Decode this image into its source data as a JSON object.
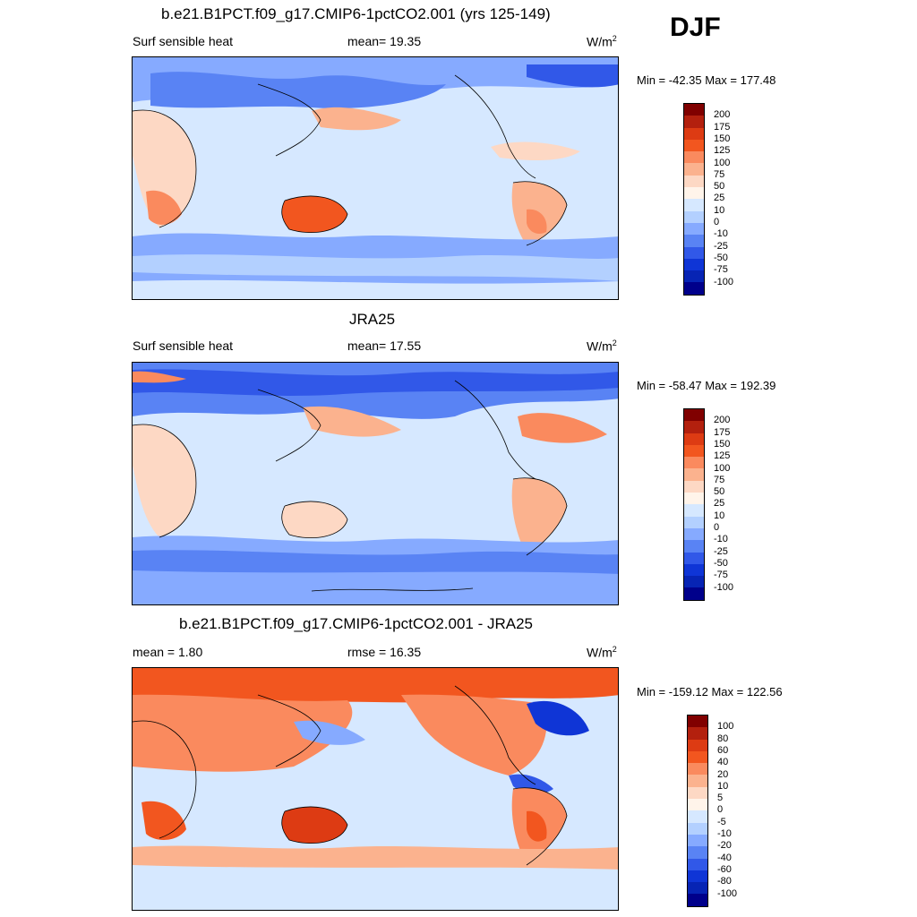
{
  "season": "DJF",
  "panels": [
    {
      "title": "b.e21.B1PCT.f09_g17.CMIP6-1pctCO2.001 (yrs 125-149)",
      "left_label": "Surf sensible heat",
      "mid_label": "mean=  19.35",
      "units": "W/m",
      "units_sup": "2",
      "minmax": "Min = -42.35 Max = 177.48",
      "colorbar": {
        "colors": [
          "#800000",
          "#b3200e",
          "#dd3b13",
          "#f2561f",
          "#fa8a5e",
          "#fbb28e",
          "#fdd8c4",
          "#fff4ea",
          "#d6e8ff",
          "#b3d0ff",
          "#86aaff",
          "#5983f4",
          "#3158e8",
          "#0f35d6",
          "#0724b4",
          "#00008b"
        ],
        "labels": [
          "200",
          "175",
          "150",
          "125",
          "100",
          "75",
          "50",
          "25",
          "10",
          "0",
          "-10",
          "-25",
          "-50",
          "-75",
          "-100"
        ]
      }
    },
    {
      "title": "JRA25",
      "left_label": "Surf sensible heat",
      "mid_label": "mean=  17.55",
      "units": "W/m",
      "units_sup": "2",
      "minmax": "Min = -58.47 Max = 192.39",
      "colorbar": {
        "colors": [
          "#800000",
          "#b3200e",
          "#dd3b13",
          "#f2561f",
          "#fa8a5e",
          "#fbb28e",
          "#fdd8c4",
          "#fff4ea",
          "#d6e8ff",
          "#b3d0ff",
          "#86aaff",
          "#5983f4",
          "#3158e8",
          "#0f35d6",
          "#0724b4",
          "#00008b"
        ],
        "labels": [
          "200",
          "175",
          "150",
          "125",
          "100",
          "75",
          "50",
          "25",
          "10",
          "0",
          "-10",
          "-25",
          "-50",
          "-75",
          "-100"
        ]
      }
    },
    {
      "title": "b.e21.B1PCT.f09_g17.CMIP6-1pctCO2.001 - JRA25",
      "left_label": "mean =   1.80",
      "mid_label": "rmse =  16.35",
      "units": "W/m",
      "units_sup": "2",
      "minmax": "Min = -159.12 Max = 122.56",
      "colorbar": {
        "colors": [
          "#800000",
          "#b3200e",
          "#dd3b13",
          "#f2561f",
          "#fa8a5e",
          "#fbb28e",
          "#fdd8c4",
          "#fff4ea",
          "#d6e8ff",
          "#b3d0ff",
          "#86aaff",
          "#5983f4",
          "#3158e8",
          "#0f35d6",
          "#0724b4",
          "#00008b"
        ],
        "labels": [
          "100",
          "80",
          "60",
          "40",
          "20",
          "10",
          "5",
          "0",
          "-5",
          "-10",
          "-20",
          "-40",
          "-60",
          "-80",
          "-100"
        ]
      }
    }
  ]
}
